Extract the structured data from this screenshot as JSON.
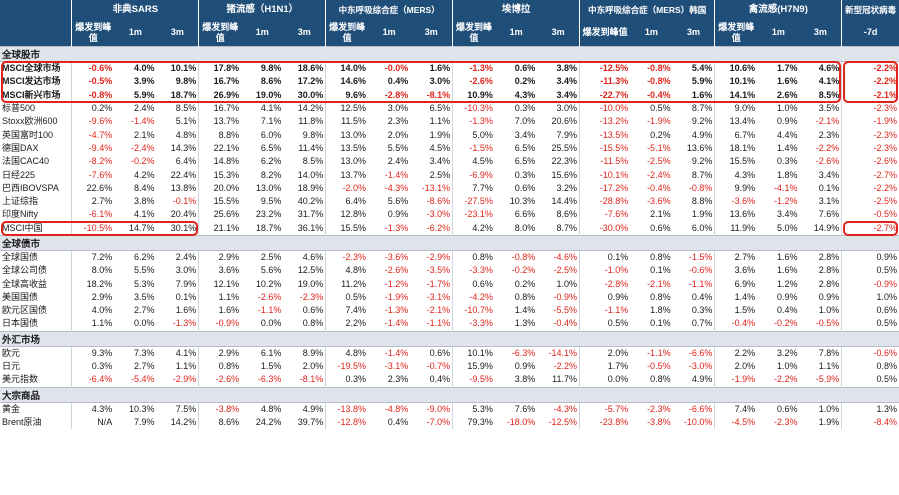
{
  "header": {
    "groups": [
      "非典SARS",
      "猪流感（H1N1）",
      "中东呼吸综合症（MERS）",
      "埃博拉",
      "中东呼吸综合症（MERS）韩国",
      "禽流感(H7N9)",
      "新型冠状病毒"
    ],
    "subs": [
      "爆发到峰值",
      "1m",
      "3m"
    ],
    "last_sub": "-7d"
  },
  "sections": [
    {
      "title": "全球股市",
      "rows": [
        {
          "name": "MSCI全球市场",
          "v": [
            "-0.6%",
            "4.0%",
            "10.1%",
            "17.8%",
            "9.8%",
            "18.6%",
            "14.0%",
            "-0.0%",
            "1.6%",
            "-1.3%",
            "0.6%",
            "3.8%",
            "-12.5%",
            "-0.8%",
            "5.4%",
            "10.6%",
            "1.7%",
            "4.6%",
            "-2.2%"
          ]
        },
        {
          "name": "MSCI发达市场",
          "v": [
            "-0.5%",
            "3.9%",
            "9.8%",
            "16.7%",
            "8.6%",
            "17.2%",
            "14.6%",
            "0.4%",
            "3.0%",
            "-2.6%",
            "0.2%",
            "3.4%",
            "-11.3%",
            "-0.8%",
            "5.9%",
            "10.1%",
            "1.6%",
            "4.1%",
            "-2.2%"
          ]
        },
        {
          "name": "MSCI新兴市场",
          "v": [
            "-0.8%",
            "5.9%",
            "18.7%",
            "26.9%",
            "19.0%",
            "30.0%",
            "9.6%",
            "-2.8%",
            "-8.1%",
            "10.9%",
            "4.3%",
            "3.4%",
            "-22.7%",
            "-0.4%",
            "1.6%",
            "14.1%",
            "2.6%",
            "8.5%",
            "-2.1%"
          ]
        },
        {
          "name": "标普500",
          "v": [
            "0.2%",
            "2.4%",
            "8.5%",
            "16.7%",
            "4.1%",
            "14.2%",
            "12.5%",
            "3.0%",
            "6.5%",
            "-10.3%",
            "0.3%",
            "3.0%",
            "-10.0%",
            "0.5%",
            "8.7%",
            "9.0%",
            "1.0%",
            "3.5%",
            "-2.3%"
          ]
        },
        {
          "name": "Stoxx欧洲600",
          "v": [
            "-9.6%",
            "-1.4%",
            "5.1%",
            "13.7%",
            "7.1%",
            "11.8%",
            "11.5%",
            "2.3%",
            "1.1%",
            "-1.3%",
            "7.0%",
            "20.6%",
            "-13.2%",
            "-1.9%",
            "9.2%",
            "13.4%",
            "0.9%",
            "-2.1%",
            "-1.9%"
          ]
        },
        {
          "name": "英国富时100",
          "v": [
            "-4.7%",
            "2.1%",
            "4.8%",
            "8.8%",
            "6.0%",
            "9.8%",
            "13.0%",
            "2.0%",
            "1.9%",
            "5.0%",
            "3.4%",
            "7.9%",
            "-13.5%",
            "0.2%",
            "4.9%",
            "6.7%",
            "4.4%",
            "2.3%",
            "-2.3%"
          ]
        },
        {
          "name": "德国DAX",
          "v": [
            "-9.4%",
            "-2.4%",
            "14.3%",
            "22.1%",
            "6.5%",
            "11.4%",
            "13.5%",
            "5.5%",
            "4.5%",
            "-1.5%",
            "6.5%",
            "25.5%",
            "-15.5%",
            "-5.1%",
            "13.6%",
            "18.1%",
            "1.4%",
            "-2.2%",
            "-2.3%"
          ]
        },
        {
          "name": "法国CAC40",
          "v": [
            "-8.2%",
            "-0.2%",
            "6.4%",
            "14.8%",
            "6.2%",
            "8.5%",
            "13.0%",
            "2.4%",
            "3.4%",
            "4.5%",
            "6.5%",
            "22.3%",
            "-11.5%",
            "-2.5%",
            "9.2%",
            "15.5%",
            "0.3%",
            "-2.6%",
            "-2.6%"
          ]
        },
        {
          "name": "日经225",
          "v": [
            "-7.6%",
            "4.2%",
            "22.4%",
            "15.3%",
            "8.2%",
            "14.0%",
            "13.7%",
            "-1.4%",
            "2.5%",
            "-6.9%",
            "0.3%",
            "15.6%",
            "-10.1%",
            "-2.4%",
            "8.7%",
            "4.3%",
            "1.8%",
            "3.4%",
            "-2.7%"
          ]
        },
        {
          "name": "巴西IBOVSPA",
          "v": [
            "22.6%",
            "8.4%",
            "13.8%",
            "20.0%",
            "13.0%",
            "18.9%",
            "-2.0%",
            "-4.3%",
            "-13.1%",
            "7.7%",
            "0.6%",
            "3.2%",
            "-17.2%",
            "-0.4%",
            "-0.8%",
            "9.9%",
            "-4.1%",
            "0.1%",
            "-2.2%"
          ]
        },
        {
          "name": "上证综指",
          "v": [
            "2.7%",
            "3.8%",
            "-0.1%",
            "15.5%",
            "9.5%",
            "40.2%",
            "6.4%",
            "5.6%",
            "-8.6%",
            "-27.5%",
            "10.3%",
            "14.4%",
            "-28.8%",
            "-3.6%",
            "8.8%",
            "-3.6%",
            "-1.2%",
            "3.1%",
            "-2.5%"
          ]
        },
        {
          "name": "印度Nifty",
          "v": [
            "-6.1%",
            "4.1%",
            "20.4%",
            "25.6%",
            "23.2%",
            "31.7%",
            "12.8%",
            "0.9%",
            "-3.0%",
            "-23.1%",
            "6.6%",
            "8.6%",
            "-7.6%",
            "2.1%",
            "1.9%",
            "13.6%",
            "3.4%",
            "7.6%",
            "-0.5%"
          ]
        },
        {
          "name": "MSCI中国",
          "v": [
            "-10.5%",
            "14.7%",
            "30.1%",
            "21.1%",
            "18.7%",
            "36.1%",
            "15.5%",
            "-1.3%",
            "-6.2%",
            "4.2%",
            "8.0%",
            "8.7%",
            "-30.0%",
            "0.6%",
            "6.0%",
            "11.9%",
            "5.0%",
            "14.9%",
            "-2.7%"
          ]
        }
      ]
    },
    {
      "title": "全球债市",
      "rows": [
        {
          "name": "全球国债",
          "v": [
            "7.2%",
            "6.2%",
            "2.4%",
            "2.9%",
            "2.5%",
            "4.6%",
            "-2.3%",
            "-3.6%",
            "-2.9%",
            "0.8%",
            "-0.8%",
            "-4.6%",
            "0.1%",
            "0.8%",
            "-1.5%",
            "2.7%",
            "1.6%",
            "2.8%",
            "0.9%"
          ]
        },
        {
          "name": "全球公司债",
          "v": [
            "8.0%",
            "5.5%",
            "3.0%",
            "3.6%",
            "5.6%",
            "12.5%",
            "4.8%",
            "-2.6%",
            "-3.5%",
            "-3.3%",
            "-0.2%",
            "-2.5%",
            "-1.0%",
            "0.1%",
            "-0.6%",
            "3.6%",
            "1.6%",
            "2.8%",
            "0.5%"
          ]
        },
        {
          "name": "全球高收益",
          "v": [
            "18.2%",
            "5.3%",
            "7.9%",
            "12.1%",
            "10.2%",
            "19.0%",
            "11.2%",
            "-1.2%",
            "-1.7%",
            "0.6%",
            "0.2%",
            "1.0%",
            "-2.8%",
            "-2.1%",
            "-1.1%",
            "6.9%",
            "1.2%",
            "2.8%",
            "-0.9%"
          ]
        },
        {
          "name": "美国国债",
          "v": [
            "2.9%",
            "3.5%",
            "0.1%",
            "1.1%",
            "-2.6%",
            "-2.3%",
            "0.5%",
            "-1.9%",
            "-3.1%",
            "-4.2%",
            "0.8%",
            "-0.9%",
            "0.9%",
            "0.8%",
            "0.4%",
            "1.4%",
            "0.9%",
            "0.9%",
            "1.0%"
          ]
        },
        {
          "name": "欧元区国债",
          "v": [
            "4.0%",
            "2.7%",
            "1.6%",
            "1.6%",
            "-1.1%",
            "0.6%",
            "7.4%",
            "-1.3%",
            "-2.1%",
            "-10.7%",
            "1.4%",
            "-5.5%",
            "-1.1%",
            "1.8%",
            "0.3%",
            "1.5%",
            "0.4%",
            "1.0%",
            "0.6%"
          ]
        },
        {
          "name": "日本国债",
          "v": [
            "1.1%",
            "0.0%",
            "-1.3%",
            "-0.9%",
            "0.0%",
            "0.8%",
            "2.2%",
            "-1.4%",
            "-1.1%",
            "-3.3%",
            "1.3%",
            "-0.4%",
            "0.5%",
            "0.1%",
            "0.7%",
            "-0.4%",
            "-0.2%",
            "-0.5%",
            "0.5%"
          ]
        }
      ]
    },
    {
      "title": "外汇市场",
      "rows": [
        {
          "name": "欧元",
          "v": [
            "9.3%",
            "7.3%",
            "4.1%",
            "2.9%",
            "6.1%",
            "8.9%",
            "4.8%",
            "-1.4%",
            "0.6%",
            "10.1%",
            "-6.3%",
            "-14.1%",
            "2.0%",
            "-1.1%",
            "-6.6%",
            "2.2%",
            "3.2%",
            "7.8%",
            "-0.6%"
          ]
        },
        {
          "name": "日元",
          "v": [
            "0.3%",
            "2.7%",
            "1.1%",
            "0.8%",
            "1.5%",
            "2.0%",
            "-19.5%",
            "-3.1%",
            "-0.7%",
            "15.9%",
            "0.9%",
            "-2.2%",
            "1.7%",
            "-0.5%",
            "-3.0%",
            "2.0%",
            "1.0%",
            "1.1%",
            "0.8%"
          ]
        },
        {
          "name": "美元指数",
          "v": [
            "-6.4%",
            "-5.4%",
            "-2.9%",
            "-2.6%",
            "-6.3%",
            "-8.1%",
            "0.3%",
            "2.3%",
            "0.4%",
            "-9.5%",
            "3.8%",
            "11.7%",
            "0.0%",
            "0.8%",
            "4.9%",
            "-1.9%",
            "-2.2%",
            "-5.9%",
            "0.5%"
          ]
        }
      ]
    },
    {
      "title": "大宗商品",
      "rows": [
        {
          "name": "黄金",
          "v": [
            "4.3%",
            "10.3%",
            "7.5%",
            "-3.8%",
            "4.8%",
            "4.9%",
            "-13.8%",
            "-4.8%",
            "-9.0%",
            "5.3%",
            "7.6%",
            "-4.3%",
            "-5.7%",
            "-2.3%",
            "-6.6%",
            "7.4%",
            "0.6%",
            "1.0%",
            "1.3%"
          ]
        },
        {
          "name": "Brent原油",
          "v": [
            "N/A",
            "7.9%",
            "14.2%",
            "8.6%",
            "24.2%",
            "39.7%",
            "-12.8%",
            "0.4%",
            "-7.0%",
            "79.3%",
            "-18.0%",
            "-12.5%",
            "-23.8%",
            "-3.8%",
            "-10.0%",
            "-4.5%",
            "-2.3%",
            "1.9%",
            "-8.4%"
          ]
        }
      ]
    }
  ],
  "colors": {
    "negative": "#e0231b",
    "header_bg": "#1f4e79",
    "section_bg": "#dfe3ea",
    "highlight": "#e0231b"
  }
}
